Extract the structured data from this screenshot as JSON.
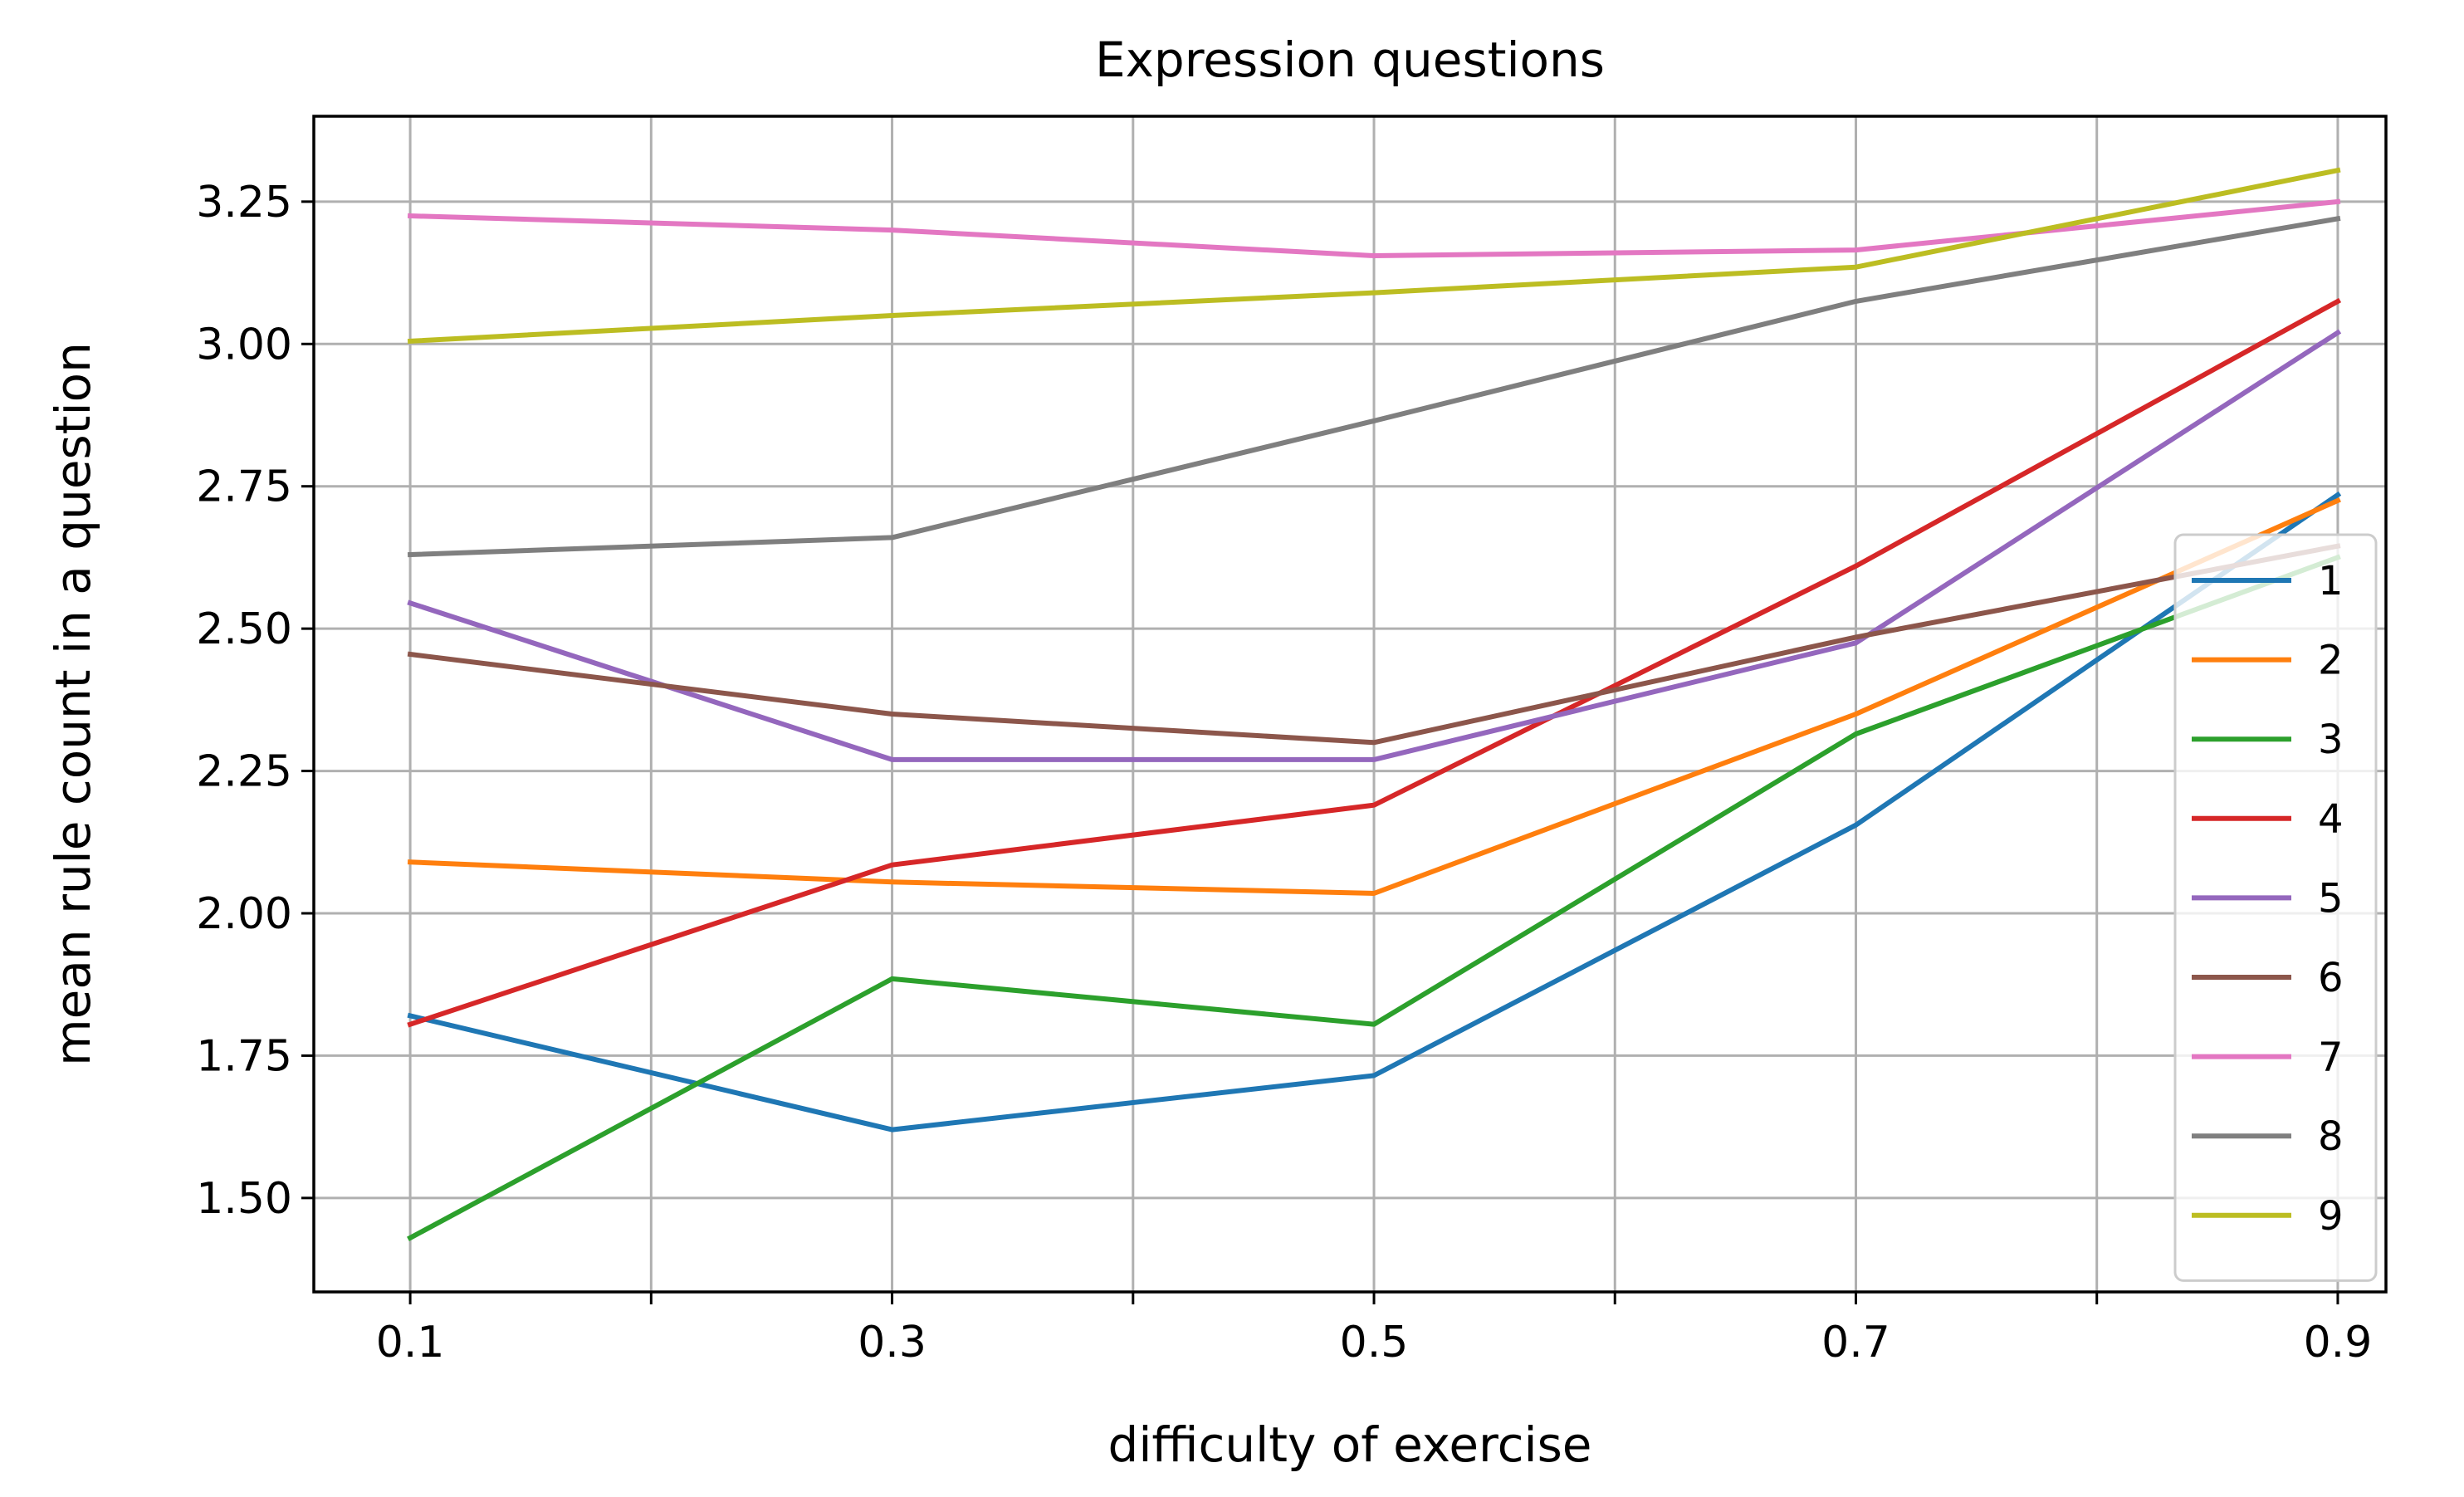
{
  "chart_data": {
    "type": "line",
    "title": "Expression questions",
    "xlabel": "difficulty of exercise",
    "ylabel": "mean rule count in a question",
    "x": [
      0.1,
      0.3,
      0.5,
      0.7,
      0.9
    ],
    "xticks": [
      "0.1",
      "0.3",
      "0.5",
      "0.7",
      "0.9"
    ],
    "xlim": [
      0.06,
      0.92
    ],
    "ylim": [
      1.335,
      3.4
    ],
    "yticks": [
      "1.50",
      "1.75",
      "2.00",
      "2.25",
      "2.50",
      "2.75",
      "3.00",
      "3.25"
    ],
    "grid": true,
    "legend_position": "right",
    "series": [
      {
        "name": "1",
        "color": "#1f77b4",
        "values": [
          1.82,
          1.62,
          1.715,
          2.155,
          2.735
        ]
      },
      {
        "name": "2",
        "color": "#ff7f0e",
        "values": [
          2.09,
          2.055,
          2.035,
          2.35,
          2.725
        ]
      },
      {
        "name": "3",
        "color": "#2ca02c",
        "values": [
          1.43,
          1.885,
          1.805,
          2.315,
          2.625
        ]
      },
      {
        "name": "4",
        "color": "#d62728",
        "values": [
          1.805,
          2.085,
          2.19,
          2.61,
          3.075
        ]
      },
      {
        "name": "5",
        "color": "#9467bd",
        "values": [
          2.545,
          2.27,
          2.27,
          2.475,
          3.02
        ]
      },
      {
        "name": "6",
        "color": "#8c564b",
        "values": [
          2.455,
          2.35,
          2.3,
          2.485,
          2.645
        ]
      },
      {
        "name": "7",
        "color": "#e377c2",
        "values": [
          3.225,
          3.2,
          3.155,
          3.165,
          3.25
        ]
      },
      {
        "name": "8",
        "color": "#7f7f7f",
        "values": [
          2.63,
          2.66,
          2.865,
          3.075,
          3.22
        ]
      },
      {
        "name": "9",
        "color": "#bcbd22",
        "values": [
          3.005,
          3.05,
          3.09,
          3.135,
          3.305
        ]
      }
    ]
  }
}
